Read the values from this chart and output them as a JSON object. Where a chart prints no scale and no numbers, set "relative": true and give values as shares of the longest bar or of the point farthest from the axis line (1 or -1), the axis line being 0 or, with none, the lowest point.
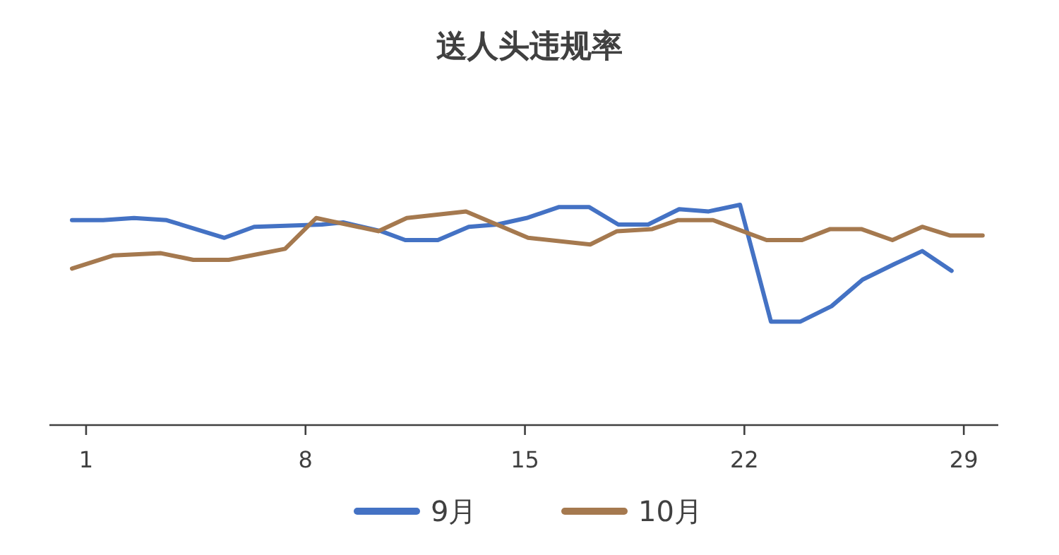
{
  "chart_data": {
    "type": "line",
    "title": "送人头违规率",
    "relative": true,
    "xlim": [
      -0.17,
      30.1
    ],
    "xticks": [
      1,
      8,
      15,
      22,
      29
    ],
    "legend": "bottom",
    "series": [
      {
        "name": "9月",
        "color": "#4472c4",
        "x": [
          0.55,
          1.54,
          2.53,
          3.57,
          5.41,
          6.36,
          8.52,
          9.2,
          10.41,
          11.18,
          12.22,
          13.21,
          14.11,
          15.05,
          16.09,
          17.04,
          17.98,
          18.93,
          19.92,
          20.86,
          21.86,
          22.85,
          23.79,
          24.78,
          25.77,
          26.77,
          27.67,
          28.61
        ],
        "values": [
          0.93,
          0.93,
          0.94,
          0.93,
          0.85,
          0.9,
          0.91,
          0.92,
          0.88,
          0.84,
          0.84,
          0.9,
          0.91,
          0.94,
          0.99,
          0.99,
          0.91,
          0.91,
          0.98,
          0.97,
          1,
          0.47,
          0.47,
          0.54,
          0.66,
          0.73,
          0.79,
          0.7
        ]
      },
      {
        "name": "10月",
        "color": "#a5794f",
        "x": [
          0.55,
          1.86,
          3.39,
          4.42,
          5.55,
          7.35,
          8.34,
          10.32,
          11.23,
          13.12,
          15.1,
          17.08,
          17.94,
          19.06,
          19.87,
          21.0,
          22.71,
          23.84,
          24.74,
          25.73,
          26.72,
          27.67,
          28.57,
          29.6
        ],
        "values": [
          0.71,
          0.77,
          0.78,
          0.75,
          0.75,
          0.8,
          0.94,
          0.88,
          0.94,
          0.97,
          0.85,
          0.82,
          0.88,
          0.89,
          0.93,
          0.93,
          0.84,
          0.84,
          0.89,
          0.89,
          0.84,
          0.9,
          0.86,
          0.86
        ]
      }
    ]
  }
}
